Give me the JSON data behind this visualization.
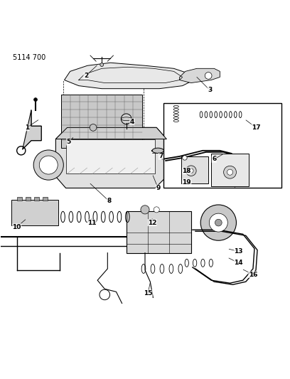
{
  "title": "5114 700",
  "background_color": "#ffffff",
  "line_color": "#000000",
  "figsize": [
    4.08,
    5.33
  ],
  "dpi": 100,
  "part_numbers": [
    1,
    2,
    3,
    4,
    5,
    6,
    7,
    8,
    9,
    10,
    11,
    12,
    13,
    14,
    15,
    16,
    17,
    18,
    19
  ],
  "labels_info": [
    [
      1,
      0.09,
      0.715,
      0.135,
      0.745
    ],
    [
      2,
      0.295,
      0.895,
      0.338,
      0.935
    ],
    [
      3,
      0.725,
      0.845,
      0.675,
      0.895
    ],
    [
      4,
      0.455,
      0.735,
      0.445,
      0.745
    ],
    [
      5,
      0.235,
      0.665,
      0.255,
      0.685
    ],
    [
      6,
      0.74,
      0.605,
      0.775,
      0.625
    ],
    [
      7,
      0.555,
      0.615,
      0.545,
      0.635
    ],
    [
      8,
      0.375,
      0.46,
      0.305,
      0.525
    ],
    [
      9,
      0.545,
      0.505,
      0.525,
      0.555
    ],
    [
      10,
      0.055,
      0.37,
      0.09,
      0.4
    ],
    [
      11,
      0.315,
      0.385,
      0.315,
      0.405
    ],
    [
      12,
      0.525,
      0.385,
      0.525,
      0.405
    ],
    [
      13,
      0.825,
      0.285,
      0.785,
      0.295
    ],
    [
      14,
      0.825,
      0.245,
      0.785,
      0.265
    ],
    [
      15,
      0.51,
      0.14,
      0.52,
      0.185
    ],
    [
      16,
      0.875,
      0.205,
      0.835,
      0.225
    ],
    [
      17,
      0.885,
      0.715,
      0.845,
      0.745
    ],
    [
      18,
      0.645,
      0.565,
      0.665,
      0.575
    ],
    [
      19,
      0.645,
      0.525,
      0.665,
      0.535
    ]
  ]
}
